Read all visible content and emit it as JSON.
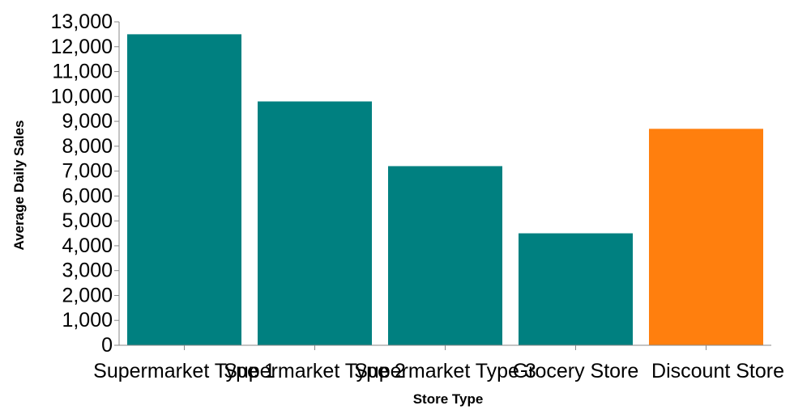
{
  "chart_data": {
    "type": "bar",
    "title": "",
    "xlabel": "Store Type",
    "ylabel": "Average Daily Sales",
    "categories": [
      "Supermarket Type 1",
      "Supermarket Type 2",
      "Supermarket Type 3",
      "Grocery Store",
      "Discount Store"
    ],
    "values": [
      12500,
      9800,
      7200,
      4500,
      8700
    ],
    "colors": [
      "#008080",
      "#008080",
      "#008080",
      "#008080",
      "#ff7f0e"
    ],
    "ylim": [
      0,
      13000
    ],
    "yticks": [
      0,
      1000,
      2000,
      3000,
      4000,
      5000,
      6000,
      7000,
      8000,
      9000,
      10000,
      11000,
      12000,
      13000
    ],
    "grid": false,
    "legend": "none"
  }
}
